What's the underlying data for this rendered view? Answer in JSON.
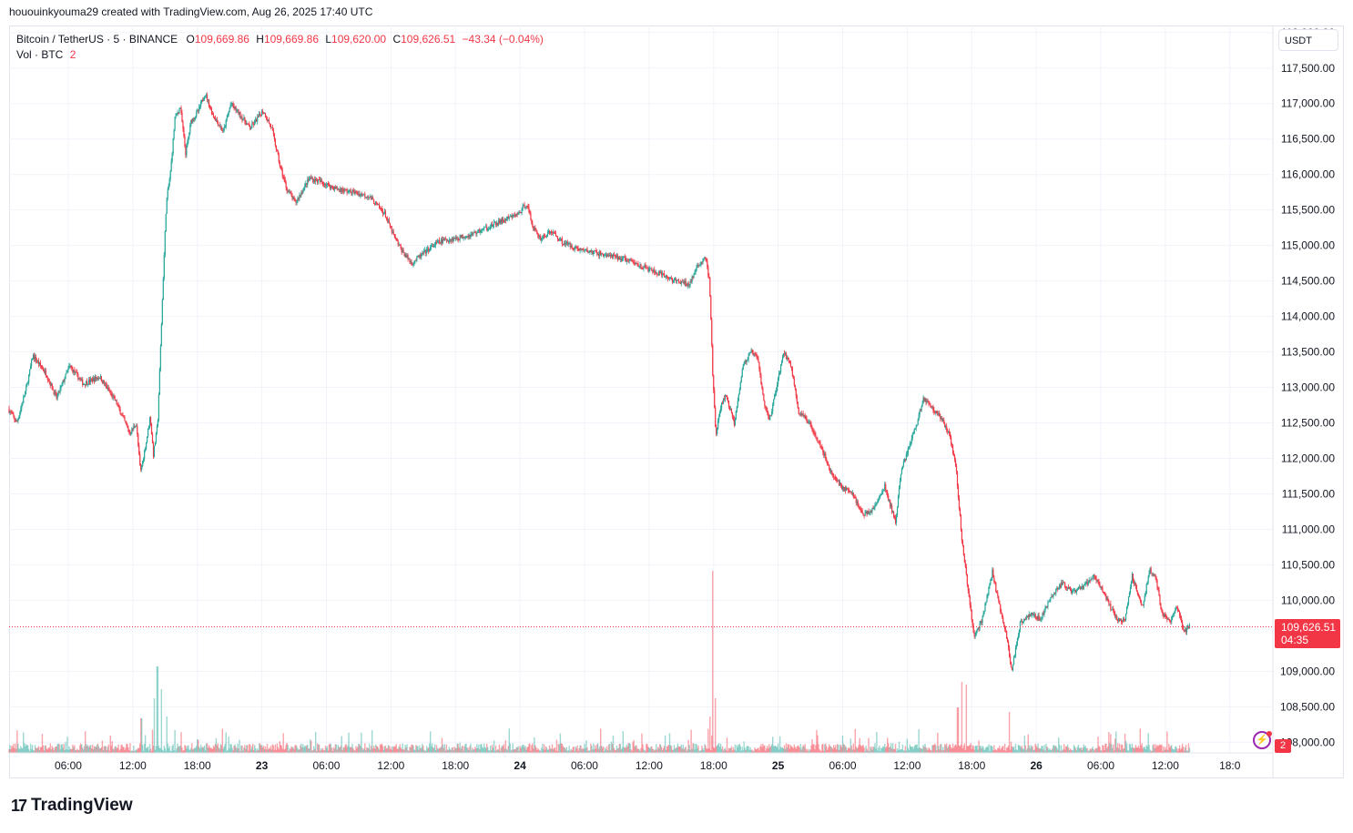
{
  "header": {
    "created_note": "hououinkyouma29 created with TradingView.com, Aug 26, 2025 17:40 UTC"
  },
  "legend": {
    "symbol": "Bitcoin / TetherUS · 5 · BINANCE",
    "o_label": "O",
    "o_value": "109,669.86",
    "h_label": "H",
    "h_value": "109,669.86",
    "l_label": "L",
    "l_value": "109,620.00",
    "c_label": "C",
    "c_value": "109,626.51",
    "change": "−43.34 (−0.04%)",
    "vol_label": "Vol · BTC",
    "vol_value": "2"
  },
  "currency_button": "USDT",
  "last_price": {
    "value": "109,626.51",
    "countdown": "04:35"
  },
  "volume_badge": "2",
  "brand": {
    "logo_text": "TradingView"
  },
  "colors": {
    "up": "#26a69a",
    "down": "#f23645",
    "grid": "#f0f3fa"
  },
  "chart_data": {
    "type": "candlestick",
    "symbol": "Bitcoin / TetherUS",
    "interval": "5",
    "exchange": "BINANCE",
    "y_ticks": [
      118000,
      117500,
      117000,
      116500,
      116000,
      115500,
      115000,
      114500,
      114000,
      113500,
      113000,
      112500,
      112000,
      111500,
      111000,
      110500,
      110000,
      109000,
      108500,
      108000
    ],
    "y_tick_labels": [
      "118,000.00",
      "117,500.00",
      "117,000.00",
      "116,500.00",
      "116,000.00",
      "115,500.00",
      "115,000.00",
      "114,500.00",
      "114,000.00",
      "113,500.00",
      "113,000.00",
      "112,500.00",
      "112,000.00",
      "111,500.00",
      "111,000.00",
      "110,500.00",
      "110,000.00",
      "109,000.00",
      "108,500.00",
      "108,000.00"
    ],
    "ylim": [
      107850,
      118100
    ],
    "x_tick_hours": [
      6,
      12,
      18,
      24,
      30,
      36,
      42,
      48,
      54,
      60,
      66,
      72,
      78,
      84,
      90,
      96,
      102,
      108,
      114
    ],
    "x_tick_labels": [
      "06:00",
      "12:00",
      "18:00",
      "23",
      "06:00",
      "12:00",
      "18:00",
      "24",
      "06:00",
      "12:00",
      "18:00",
      "25",
      "06:00",
      "12:00",
      "18:00",
      "26",
      "06:00",
      "12:00",
      "18:0"
    ],
    "xlim_hours": [
      0.5,
      118.0
    ],
    "last_price": 109626.51,
    "path_points": [
      [
        0.5,
        112700
      ],
      [
        1.3,
        112500
      ],
      [
        2.2,
        113000
      ],
      [
        2.8,
        113450
      ],
      [
        4.0,
        113200
      ],
      [
        5.0,
        112850
      ],
      [
        6.2,
        113300
      ],
      [
        7.5,
        113050
      ],
      [
        9.0,
        113150
      ],
      [
        10.5,
        112800
      ],
      [
        11.8,
        112350
      ],
      [
        12.4,
        112500
      ],
      [
        12.8,
        111800
      ],
      [
        13.3,
        112200
      ],
      [
        13.7,
        112600
      ],
      [
        14.0,
        112050
      ],
      [
        14.4,
        112500
      ],
      [
        14.9,
        114500
      ],
      [
        15.2,
        115600
      ],
      [
        15.6,
        116050
      ],
      [
        16.0,
        116800
      ],
      [
        16.5,
        116950
      ],
      [
        17.0,
        116300
      ],
      [
        17.5,
        116750
      ],
      [
        18.2,
        116900
      ],
      [
        18.8,
        117150
      ],
      [
        19.5,
        116850
      ],
      [
        20.5,
        116600
      ],
      [
        21.2,
        117000
      ],
      [
        22.0,
        116850
      ],
      [
        23.0,
        116650
      ],
      [
        24.2,
        116900
      ],
      [
        25.0,
        116650
      ],
      [
        25.8,
        116100
      ],
      [
        26.4,
        115800
      ],
      [
        27.2,
        115600
      ],
      [
        28.5,
        115950
      ],
      [
        29.5,
        115900
      ],
      [
        31.0,
        115800
      ],
      [
        32.5,
        115750
      ],
      [
        34.0,
        115700
      ],
      [
        35.5,
        115450
      ],
      [
        36.3,
        115150
      ],
      [
        37.0,
        114950
      ],
      [
        38.0,
        114750
      ],
      [
        39.2,
        114900
      ],
      [
        40.5,
        115050
      ],
      [
        42.0,
        115100
      ],
      [
        43.5,
        115150
      ],
      [
        45.0,
        115250
      ],
      [
        46.5,
        115350
      ],
      [
        48.0,
        115450
      ],
      [
        48.7,
        115600
      ],
      [
        49.3,
        115250
      ],
      [
        50.0,
        115100
      ],
      [
        51.0,
        115200
      ],
      [
        52.0,
        115050
      ],
      [
        53.5,
        114950
      ],
      [
        55.0,
        114900
      ],
      [
        56.5,
        114850
      ],
      [
        58.0,
        114800
      ],
      [
        59.5,
        114700
      ],
      [
        61.0,
        114600
      ],
      [
        62.5,
        114500
      ],
      [
        63.8,
        114450
      ],
      [
        64.6,
        114700
      ],
      [
        65.3,
        114850
      ],
      [
        65.7,
        114500
      ],
      [
        66.0,
        113200
      ],
      [
        66.3,
        112300
      ],
      [
        66.7,
        112700
      ],
      [
        67.2,
        112900
      ],
      [
        68.0,
        112500
      ],
      [
        68.8,
        113300
      ],
      [
        69.6,
        113500
      ],
      [
        70.2,
        113400
      ],
      [
        70.8,
        112750
      ],
      [
        71.3,
        112550
      ],
      [
        72.0,
        113050
      ],
      [
        72.6,
        113500
      ],
      [
        73.3,
        113300
      ],
      [
        74.0,
        112650
      ],
      [
        75.0,
        112500
      ],
      [
        76.0,
        112200
      ],
      [
        77.0,
        111800
      ],
      [
        78.0,
        111600
      ],
      [
        79.0,
        111500
      ],
      [
        80.0,
        111200
      ],
      [
        81.0,
        111300
      ],
      [
        82.0,
        111600
      ],
      [
        83.0,
        111100
      ],
      [
        83.5,
        111800
      ],
      [
        84.3,
        112200
      ],
      [
        85.0,
        112500
      ],
      [
        85.6,
        112850
      ],
      [
        86.5,
        112700
      ],
      [
        87.3,
        112550
      ],
      [
        88.0,
        112350
      ],
      [
        88.6,
        111900
      ],
      [
        89.2,
        110800
      ],
      [
        89.7,
        110200
      ],
      [
        90.3,
        109500
      ],
      [
        91.0,
        109700
      ],
      [
        92.0,
        110400
      ],
      [
        92.6,
        109950
      ],
      [
        93.2,
        109600
      ],
      [
        93.8,
        109000
      ],
      [
        94.6,
        109700
      ],
      [
        95.5,
        109800
      ],
      [
        96.5,
        109750
      ],
      [
        97.5,
        110050
      ],
      [
        98.5,
        110250
      ],
      [
        99.5,
        110100
      ],
      [
        100.5,
        110200
      ],
      [
        101.5,
        110350
      ],
      [
        102.5,
        110050
      ],
      [
        103.5,
        109750
      ],
      [
        104.3,
        109700
      ],
      [
        105.0,
        110350
      ],
      [
        105.5,
        110100
      ],
      [
        106.0,
        109900
      ],
      [
        106.6,
        110450
      ],
      [
        107.2,
        110300
      ],
      [
        107.8,
        109800
      ],
      [
        108.5,
        109700
      ],
      [
        109.2,
        109900
      ],
      [
        109.8,
        109550
      ],
      [
        110.3,
        109626.51
      ]
    ],
    "volume_spike_hours": [
      [
        12.8,
        38
      ],
      [
        14.0,
        60
      ],
      [
        14.3,
        95
      ],
      [
        14.7,
        70
      ],
      [
        15.2,
        40
      ],
      [
        65.7,
        40
      ],
      [
        65.9,
        200
      ],
      [
        66.2,
        60
      ],
      [
        88.7,
        50
      ],
      [
        89.1,
        78
      ],
      [
        89.5,
        75
      ],
      [
        93.5,
        45
      ]
    ],
    "volume_baseline_max": 25
  }
}
